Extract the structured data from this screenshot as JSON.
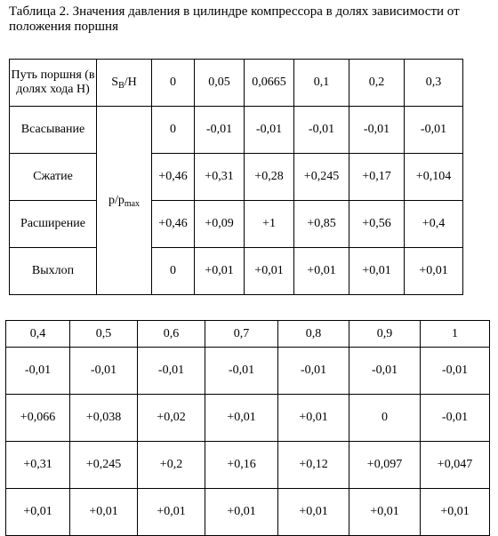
{
  "caption": "Таблица 2. Значения давления в цилиндре компрессора в долях зависимости от положения поршня",
  "table1": {
    "header_label": "Путь поршня (в долях хода Н)",
    "s_main": "S",
    "s_sub": "В",
    "s_tail": "/H",
    "p_main": "p/p",
    "p_sub": "max",
    "columns": [
      "0",
      "0,05",
      "0,0665",
      "0,1",
      "0,2",
      "0,3"
    ],
    "rows": [
      {
        "label": "Всасывание",
        "values": [
          "0",
          "-0,01",
          "-0,01",
          "-0,01",
          "-0,01",
          "-0,01"
        ]
      },
      {
        "label": "Сжатие",
        "values": [
          "+0,46",
          "+0,31",
          "+0,28",
          "+0,245",
          "+0,17",
          "+0,104"
        ]
      },
      {
        "label": "Расширение",
        "values": [
          "+0,46",
          "+0,09",
          "+1",
          "+0,85",
          "+0,56",
          "+0,4"
        ]
      },
      {
        "label": "Выхлоп",
        "values": [
          "0",
          "+0,01",
          "+0,01",
          "+0,01",
          "+0,01",
          "+0,01"
        ]
      }
    ]
  },
  "table2": {
    "columns": [
      "0,4",
      "0,5",
      "0,6",
      "0,7",
      "0,8",
      "0,9",
      "1"
    ],
    "rows": [
      [
        "-0,01",
        "-0,01",
        "-0,01",
        "-0,01",
        "-0,01",
        "-0,01",
        "-0,01"
      ],
      [
        "+0,066",
        "+0,038",
        "+0,02",
        "+0,01",
        "+0,01",
        "0",
        "-0,01"
      ],
      [
        "+0,31",
        "+0,245",
        "+0,2",
        "+0,16",
        "+0,12",
        "+0,097",
        "+0,047"
      ],
      [
        "+0,01",
        "+0,01",
        "+0,01",
        "+0,01",
        "+0,01",
        "+0,01",
        "+0,01"
      ]
    ]
  }
}
